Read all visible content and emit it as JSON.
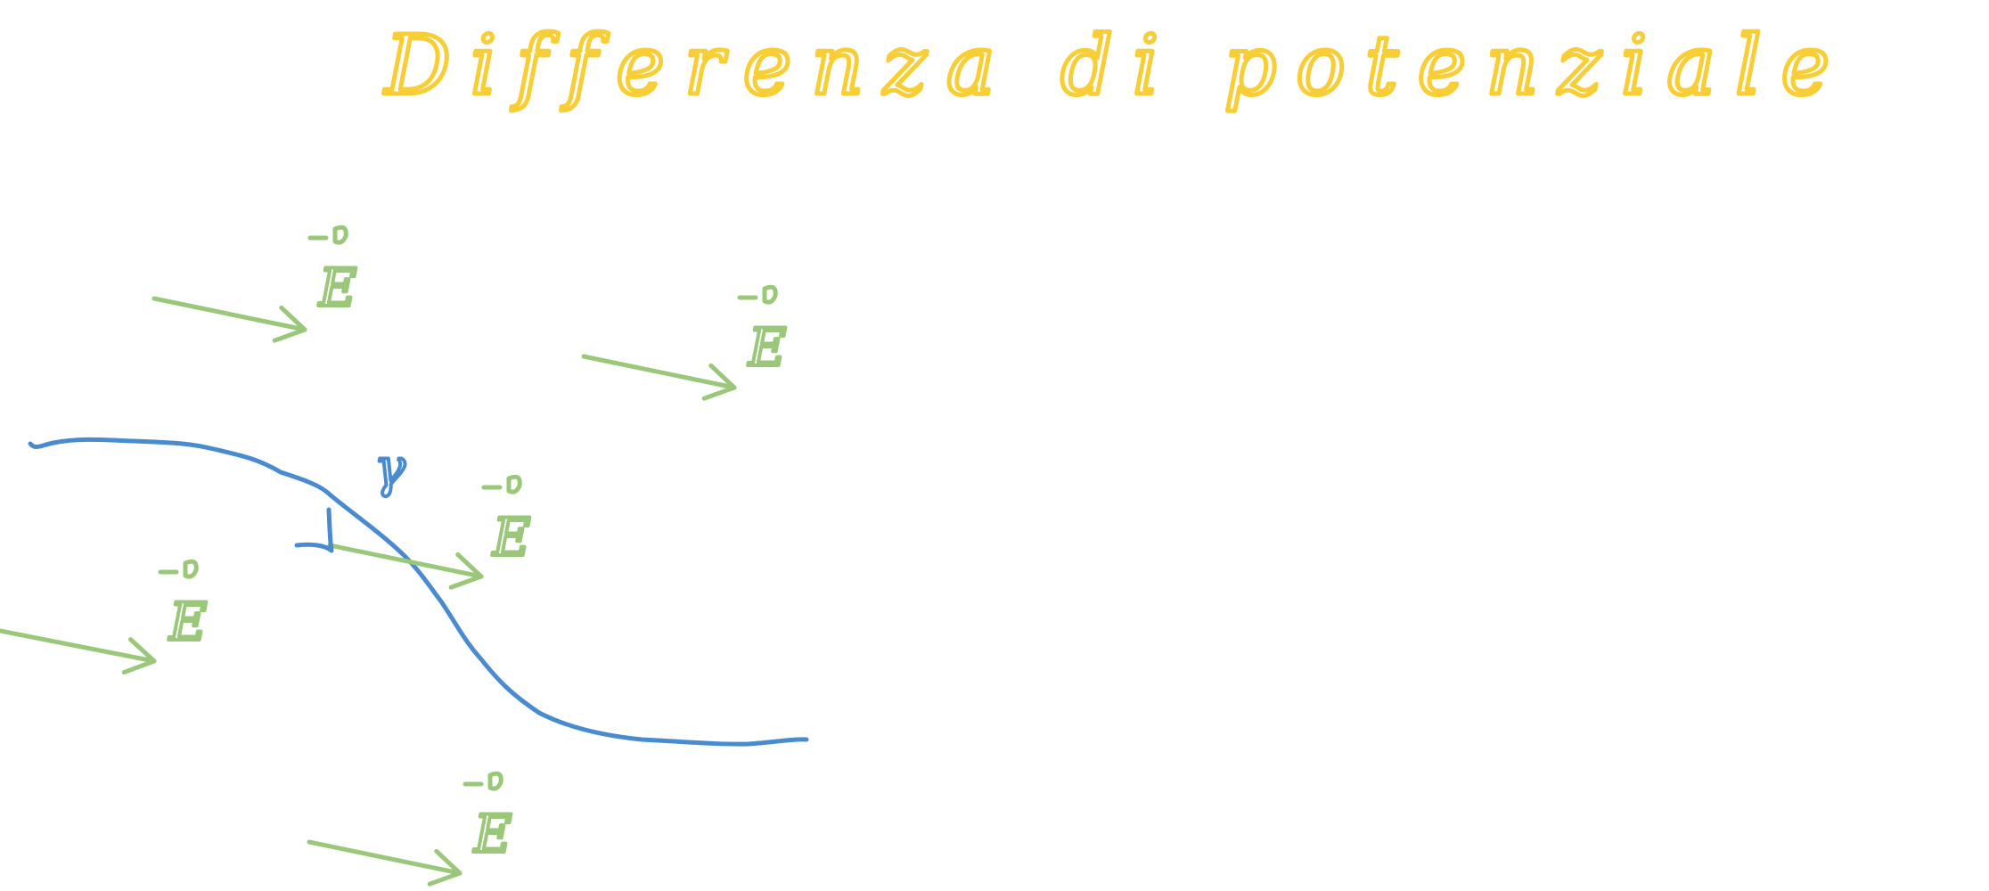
{
  "title": "Differenza di potenziale",
  "colors": {
    "title": "#F7CE35",
    "field": "#9AC77A",
    "curve": "#4A8BD0",
    "background": "#FFFFFF"
  },
  "field_label": "E",
  "curve_label": "γ"
}
